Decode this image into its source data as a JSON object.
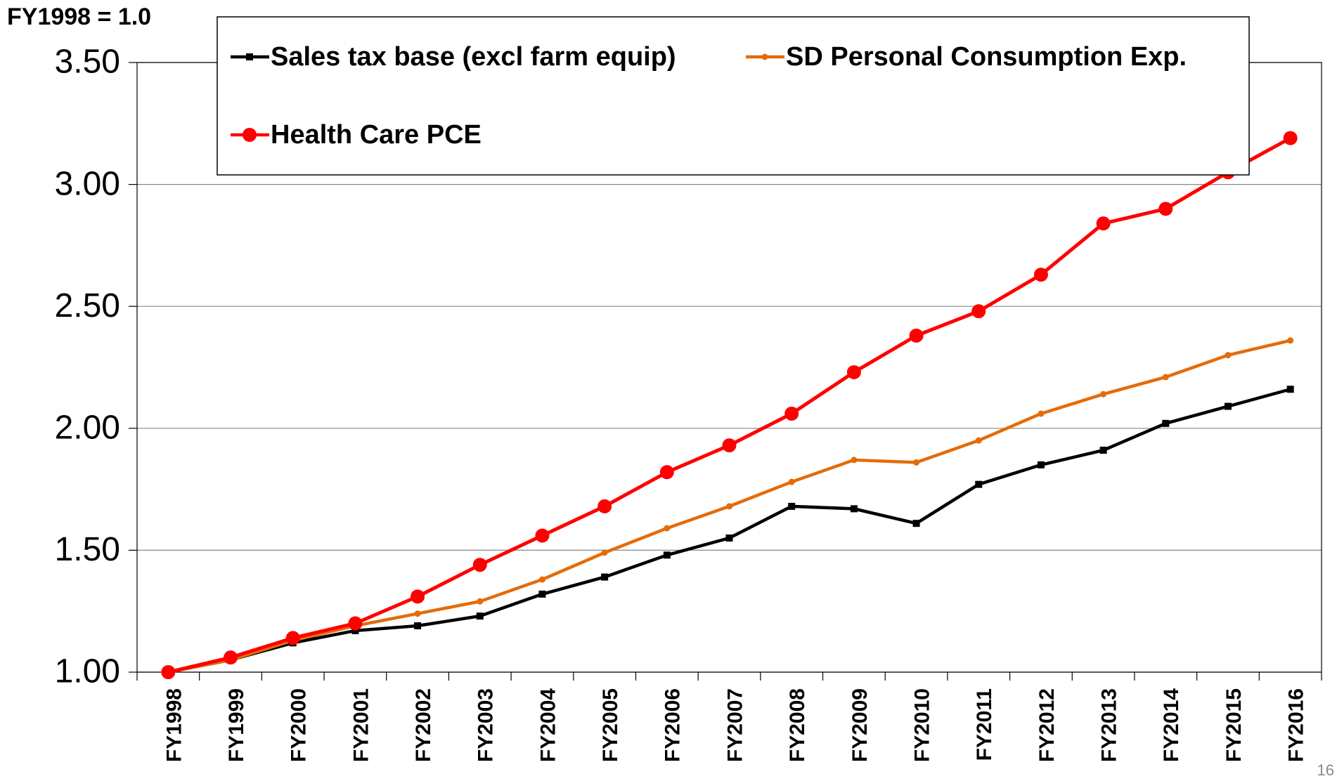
{
  "chart_data": {
    "type": "line",
    "y_axis_label": "FY1998 = 1.0",
    "page_number": "16",
    "categories": [
      "FY1998",
      "FY1999",
      "FY2000",
      "FY2001",
      "FY2002",
      "FY2003",
      "FY2004",
      "FY2005",
      "FY2006",
      "FY2007",
      "FY2008",
      "FY2009",
      "FY2010",
      "FY2011",
      "FY2012",
      "FY2013",
      "FY2014",
      "FY2015",
      "FY2016"
    ],
    "series": [
      {
        "name": "Sales tax base (excl farm equip)",
        "color": "#000000",
        "marker": "square",
        "values": [
          1.0,
          1.05,
          1.12,
          1.17,
          1.19,
          1.23,
          1.32,
          1.39,
          1.48,
          1.55,
          1.68,
          1.67,
          1.61,
          1.77,
          1.85,
          1.91,
          2.02,
          2.09,
          2.16
        ]
      },
      {
        "name": "SD Personal Consumption Exp.",
        "color": "#e46c0a",
        "marker": "small-circle",
        "values": [
          1.0,
          1.05,
          1.13,
          1.19,
          1.24,
          1.29,
          1.38,
          1.49,
          1.59,
          1.68,
          1.78,
          1.87,
          1.86,
          1.95,
          2.06,
          2.14,
          2.21,
          2.3,
          2.36
        ]
      },
      {
        "name": "Health Care PCE",
        "color": "#ff0000",
        "marker": "circle",
        "values": [
          1.0,
          1.06,
          1.14,
          1.2,
          1.31,
          1.44,
          1.56,
          1.68,
          1.82,
          1.93,
          2.06,
          2.23,
          2.38,
          2.48,
          2.63,
          2.84,
          2.9,
          3.05,
          3.19
        ]
      }
    ],
    "ylim": [
      1.0,
      3.5
    ],
    "yticks": [
      {
        "value": 1.0,
        "label": "1.00"
      },
      {
        "value": 1.5,
        "label": "1.50"
      },
      {
        "value": 2.0,
        "label": "2.00"
      },
      {
        "value": 2.5,
        "label": "2.50"
      },
      {
        "value": 3.0,
        "label": "3.00"
      },
      {
        "value": 3.5,
        "label": "3.50"
      }
    ],
    "grid": true,
    "legend": "top"
  }
}
